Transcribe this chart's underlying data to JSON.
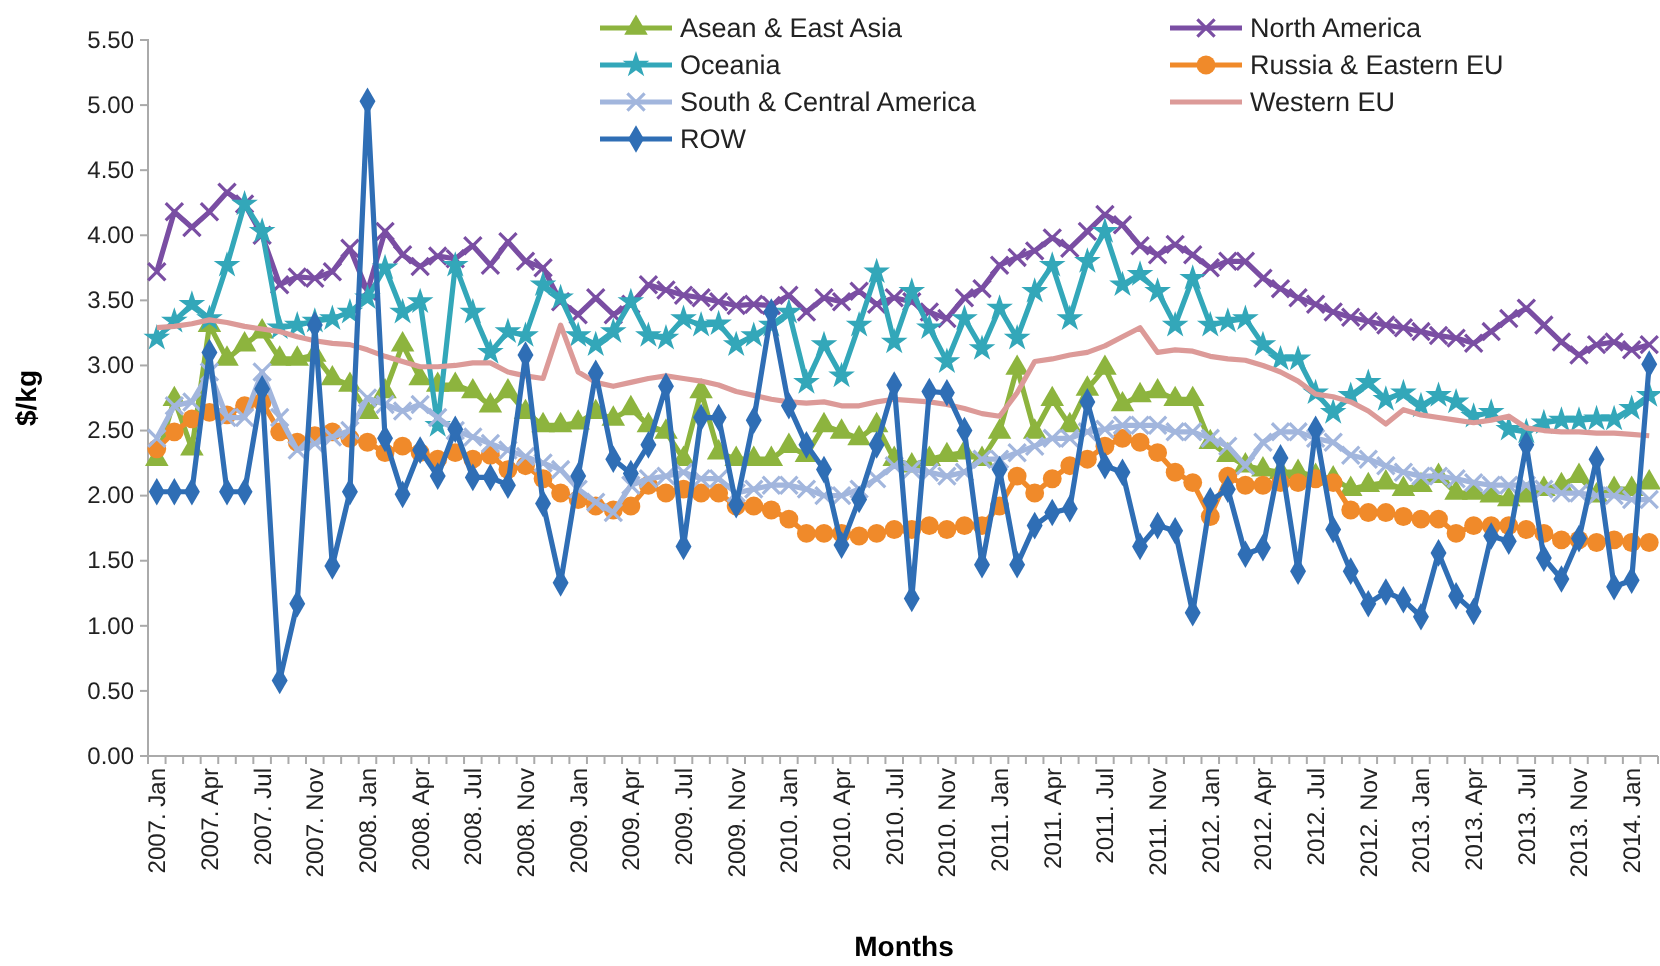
{
  "chart_data": {
    "type": "line",
    "xlabel": "Months",
    "ylabel": "$/kg",
    "legend": "top",
    "grid": false,
    "categories": [
      "2007. Jan",
      null,
      null,
      "2007. Apr",
      null,
      null,
      "2007. Jul",
      null,
      null,
      "2007. Nov",
      null,
      null,
      "2008. Jan",
      null,
      null,
      "2008. Apr",
      null,
      null,
      "2008. Jul",
      null,
      null,
      "2008. Nov",
      null,
      null,
      "2009. Jan",
      null,
      null,
      "2009. Apr",
      null,
      null,
      "2009. Jul",
      null,
      null,
      "2009. Nov",
      null,
      null,
      "2010. Jan",
      null,
      null,
      "2010. Apr",
      null,
      null,
      "2010. Jul",
      null,
      null,
      "2010. Nov",
      null,
      null,
      "2011. Jan",
      null,
      null,
      "2011. Apr",
      null,
      null,
      "2011. Jul",
      null,
      null,
      "2011. Nov",
      null,
      null,
      "2012. Jan",
      null,
      null,
      "2012. Apr",
      null,
      null,
      "2012. Jul",
      null,
      null,
      "2012. Nov",
      null,
      null,
      "2013. Jan",
      null,
      null,
      "2013. Apr",
      null,
      null,
      "2013. Jul",
      null,
      null,
      "2013. Nov",
      null,
      null,
      "2014. Jan",
      null
    ],
    "ylim": [
      0,
      5.5
    ],
    "yticks": [
      {
        "value": 0,
        "label": "0.00"
      },
      {
        "value": 0.5,
        "label": "0.50"
      },
      {
        "value": 1,
        "label": "1.00"
      },
      {
        "value": 1.5,
        "label": "1.50"
      },
      {
        "value": 2,
        "label": "2.00"
      },
      {
        "value": 2.5,
        "label": "2.50"
      },
      {
        "value": 3,
        "label": "3.00"
      },
      {
        "value": 3.5,
        "label": "3.50"
      },
      {
        "value": 4,
        "label": "4.00"
      },
      {
        "value": 4.5,
        "label": "4.50"
      },
      {
        "value": 5,
        "label": "5.00"
      },
      {
        "value": 5.5,
        "label": "5.50"
      }
    ],
    "series": [
      {
        "name": "Asean & East Asia",
        "color": "#8db43e",
        "marker": "triangle",
        "values": [
          2.28,
          2.74,
          2.36,
          3.31,
          3.05,
          3.16,
          3.26,
          3.05,
          3.05,
          3.08,
          2.9,
          2.85,
          2.64,
          2.8,
          3.16,
          2.9,
          2.85,
          2.85,
          2.8,
          2.69,
          2.8,
          2.64,
          2.54,
          2.54,
          2.56,
          2.64,
          2.59,
          2.67,
          2.54,
          2.49,
          2.28,
          2.8,
          2.33,
          2.28,
          2.28,
          2.28,
          2.38,
          2.31,
          2.54,
          2.49,
          2.44,
          2.54,
          2.28,
          2.23,
          2.28,
          2.31,
          2.33,
          2.28,
          2.49,
          2.98,
          2.49,
          2.74,
          2.54,
          2.82,
          2.98,
          2.7,
          2.77,
          2.8,
          2.74,
          2.74,
          2.41,
          2.31,
          2.23,
          2.2,
          2.18,
          2.18,
          2.15,
          2.13,
          2.05,
          2.08,
          2.1,
          2.05,
          2.08,
          2.15,
          2.02,
          2.02,
          2.0,
          1.97,
          2.0,
          2.05,
          2.08,
          2.15,
          2.0,
          2.05,
          2.05,
          2.1
        ]
      },
      {
        "name": "North America",
        "color": "#7a4ea3",
        "marker": "cross",
        "values": [
          3.72,
          4.18,
          4.06,
          4.18,
          4.33,
          4.24,
          4.0,
          3.62,
          3.68,
          3.67,
          3.72,
          3.9,
          3.57,
          4.03,
          3.85,
          3.76,
          3.84,
          3.82,
          3.92,
          3.77,
          3.95,
          3.8,
          3.75,
          3.49,
          3.39,
          3.52,
          3.39,
          3.47,
          3.62,
          3.58,
          3.54,
          3.52,
          3.49,
          3.46,
          3.47,
          3.46,
          3.54,
          3.41,
          3.52,
          3.49,
          3.57,
          3.47,
          3.52,
          3.49,
          3.41,
          3.36,
          3.52,
          3.59,
          3.77,
          3.83,
          3.88,
          3.98,
          3.9,
          4.03,
          4.16,
          4.08,
          3.92,
          3.85,
          3.93,
          3.85,
          3.75,
          3.8,
          3.8,
          3.67,
          3.59,
          3.52,
          3.47,
          3.41,
          3.37,
          3.34,
          3.31,
          3.29,
          3.26,
          3.23,
          3.21,
          3.17,
          3.26,
          3.36,
          3.44,
          3.31,
          3.18,
          3.08,
          3.16,
          3.18,
          3.12,
          3.16
        ]
      },
      {
        "name": "Oceania",
        "color": "#33a7b9",
        "marker": "star",
        "values": [
          3.21,
          3.34,
          3.47,
          3.36,
          3.77,
          4.24,
          4.03,
          3.29,
          3.31,
          3.34,
          3.36,
          3.41,
          3.52,
          3.75,
          3.41,
          3.49,
          2.54,
          3.77,
          3.41,
          3.1,
          3.26,
          3.23,
          3.62,
          3.52,
          3.23,
          3.16,
          3.26,
          3.49,
          3.23,
          3.21,
          3.36,
          3.31,
          3.32,
          3.16,
          3.23,
          3.31,
          3.41,
          2.87,
          3.16,
          2.92,
          3.31,
          3.72,
          3.18,
          3.57,
          3.29,
          3.03,
          3.36,
          3.13,
          3.44,
          3.21,
          3.57,
          3.77,
          3.36,
          3.8,
          4.03,
          3.62,
          3.7,
          3.57,
          3.31,
          3.67,
          3.31,
          3.34,
          3.36,
          3.16,
          3.05,
          3.05,
          2.79,
          2.64,
          2.77,
          2.87,
          2.74,
          2.79,
          2.69,
          2.77,
          2.72,
          2.61,
          2.64,
          2.51,
          2.49,
          2.56,
          2.58,
          2.58,
          2.59,
          2.59,
          2.67,
          2.77
        ]
      },
      {
        "name": "Russia & Eastern EU",
        "color": "#f08a2a",
        "marker": "circle",
        "values": [
          2.36,
          2.49,
          2.59,
          2.64,
          2.62,
          2.69,
          2.72,
          2.49,
          2.41,
          2.46,
          2.49,
          2.44,
          2.41,
          2.33,
          2.38,
          2.33,
          2.28,
          2.33,
          2.28,
          2.31,
          2.2,
          2.23,
          2.13,
          2.02,
          1.97,
          1.92,
          1.89,
          1.92,
          2.08,
          2.02,
          2.05,
          2.02,
          2.02,
          1.92,
          1.92,
          1.89,
          1.82,
          1.71,
          1.71,
          1.71,
          1.69,
          1.71,
          1.74,
          1.74,
          1.77,
          1.74,
          1.77,
          1.77,
          1.92,
          2.15,
          2.02,
          2.13,
          2.23,
          2.28,
          2.38,
          2.44,
          2.41,
          2.33,
          2.18,
          2.1,
          1.84,
          2.15,
          2.08,
          2.08,
          2.1,
          2.1,
          2.13,
          2.1,
          1.89,
          1.87,
          1.87,
          1.84,
          1.82,
          1.82,
          1.71,
          1.77,
          1.77,
          1.77,
          1.74,
          1.71,
          1.66,
          1.66,
          1.64,
          1.66,
          1.64,
          1.64
        ]
      },
      {
        "name": "South & Central America",
        "color": "#a2b6dd",
        "marker": "cross",
        "values": [
          2.44,
          2.69,
          2.72,
          2.95,
          2.6,
          2.6,
          2.95,
          2.6,
          2.35,
          2.4,
          2.45,
          2.5,
          2.75,
          2.7,
          2.65,
          2.7,
          2.6,
          2.5,
          2.45,
          2.4,
          2.35,
          2.3,
          2.25,
          2.2,
          2.05,
          1.95,
          1.87,
          2.08,
          2.13,
          2.15,
          2.18,
          2.13,
          2.13,
          2.02,
          2.05,
          2.08,
          2.08,
          2.05,
          2.0,
          2.0,
          2.05,
          2.13,
          2.23,
          2.2,
          2.18,
          2.15,
          2.18,
          2.28,
          2.28,
          2.33,
          2.38,
          2.44,
          2.44,
          2.49,
          2.51,
          2.54,
          2.54,
          2.54,
          2.49,
          2.49,
          2.44,
          2.38,
          2.23,
          2.41,
          2.49,
          2.49,
          2.44,
          2.41,
          2.31,
          2.28,
          2.23,
          2.18,
          2.15,
          2.15,
          2.13,
          2.1,
          2.08,
          2.08,
          2.08,
          2.05,
          2.02,
          2.02,
          2.0,
          2.0,
          1.97,
          1.97
        ]
      },
      {
        "name": "Western EU",
        "color": "#dc9a98",
        "marker": "none",
        "values": [
          3.29,
          3.3,
          3.32,
          3.35,
          3.33,
          3.3,
          3.28,
          3.26,
          3.22,
          3.19,
          3.17,
          3.16,
          3.12,
          3.07,
          3.03,
          2.99,
          2.99,
          3.0,
          3.02,
          3.02,
          2.95,
          2.92,
          2.9,
          3.31,
          2.95,
          2.87,
          2.84,
          2.87,
          2.9,
          2.92,
          2.9,
          2.88,
          2.85,
          2.8,
          2.77,
          2.74,
          2.72,
          2.71,
          2.72,
          2.69,
          2.69,
          2.72,
          2.74,
          2.73,
          2.72,
          2.7,
          2.67,
          2.63,
          2.61,
          2.79,
          3.03,
          3.05,
          3.08,
          3.1,
          3.15,
          3.22,
          3.29,
          3.1,
          3.12,
          3.11,
          3.07,
          3.05,
          3.04,
          3.0,
          2.95,
          2.88,
          2.78,
          2.76,
          2.72,
          2.65,
          2.55,
          2.66,
          2.62,
          2.6,
          2.58,
          2.56,
          2.58,
          2.61,
          2.52,
          2.5,
          2.49,
          2.49,
          2.48,
          2.48,
          2.47,
          2.46
        ]
      },
      {
        "name": "ROW",
        "color": "#2f6eb5",
        "marker": "diamond",
        "values": [
          2.03,
          2.03,
          2.03,
          3.1,
          2.03,
          2.03,
          2.82,
          0.58,
          1.17,
          3.31,
          1.46,
          2.03,
          5.03,
          2.44,
          2.01,
          2.35,
          2.15,
          2.51,
          2.14,
          2.14,
          2.08,
          3.08,
          1.94,
          1.33,
          2.15,
          2.94,
          2.28,
          2.17,
          2.39,
          2.84,
          1.61,
          2.6,
          2.6,
          1.93,
          2.58,
          3.41,
          2.69,
          2.39,
          2.2,
          1.62,
          1.97,
          2.39,
          2.85,
          1.21,
          2.8,
          2.79,
          2.5,
          1.47,
          2.2,
          1.47,
          1.77,
          1.87,
          1.9,
          2.72,
          2.23,
          2.18,
          1.61,
          1.77,
          1.73,
          1.1,
          1.96,
          2.05,
          1.55,
          1.6,
          2.29,
          1.42,
          2.51,
          1.74,
          1.42,
          1.17,
          1.26,
          1.2,
          1.07,
          1.56,
          1.23,
          1.11,
          1.69,
          1.65,
          2.39,
          1.52,
          1.36,
          1.67,
          2.28,
          1.3,
          1.35,
          3.01
        ]
      }
    ]
  }
}
